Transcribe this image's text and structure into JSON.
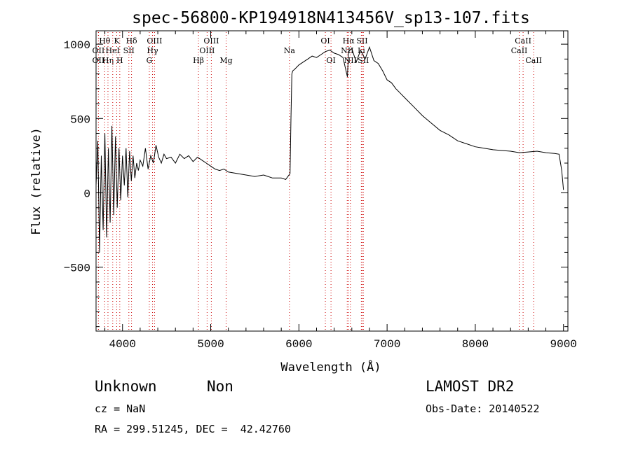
{
  "chart_data": {
    "type": "line",
    "title": "spec-56800-KP194918N413456V_sp13-107.fits",
    "xlabel": "Wavelength (Å)",
    "ylabel": "Flux (relative)",
    "xlim": [
      3700,
      9050
    ],
    "ylim": [
      -930,
      1090
    ],
    "xticks": [
      4000,
      5000,
      6000,
      7000,
      8000,
      9000
    ],
    "yticks": [
      -500,
      0,
      500,
      1000
    ],
    "grid": false,
    "series": [
      {
        "values_note_free": true,
        "x": [
          3700,
          3720,
          3740,
          3760,
          3780,
          3800,
          3820,
          3840,
          3860,
          3880,
          3900,
          3920,
          3940,
          3960,
          3980,
          4000,
          4020,
          4040,
          4060,
          4080,
          4100,
          4120,
          4140,
          4160,
          4180,
          4200,
          4230,
          4260,
          4290,
          4320,
          4350,
          4380,
          4410,
          4440,
          4470,
          4500,
          4550,
          4600,
          4650,
          4700,
          4750,
          4800,
          4850,
          4900,
          4950,
          5000,
          5050,
          5100,
          5150,
          5200,
          5300,
          5400,
          5500,
          5600,
          5700,
          5800,
          5850,
          5900,
          5910,
          5920,
          5930,
          5950,
          6000,
          6050,
          6100,
          6150,
          6200,
          6250,
          6300,
          6350,
          6400,
          6450,
          6500,
          6550,
          6563,
          6580,
          6600,
          6650,
          6700,
          6750,
          6800,
          6850,
          6900,
          6950,
          7000,
          7050,
          7100,
          7150,
          7200,
          7300,
          7400,
          7500,
          7600,
          7700,
          7800,
          7900,
          8000,
          8100,
          8200,
          8300,
          8400,
          8500,
          8600,
          8700,
          8800,
          8900,
          8950,
          8980,
          9000
        ],
        "y": [
          50,
          350,
          -400,
          250,
          -250,
          400,
          -300,
          300,
          -200,
          450,
          -150,
          380,
          -100,
          300,
          -50,
          250,
          50,
          300,
          -30,
          280,
          80,
          250,
          100,
          200,
          150,
          220,
          180,
          300,
          160,
          250,
          200,
          320,
          240,
          200,
          260,
          230,
          240,
          200,
          260,
          230,
          250,
          210,
          240,
          220,
          200,
          180,
          160,
          150,
          160,
          140,
          130,
          120,
          110,
          120,
          100,
          100,
          90,
          130,
          500,
          800,
          820,
          830,
          860,
          880,
          900,
          920,
          910,
          930,
          950,
          960,
          940,
          930,
          910,
          780,
          950,
          960,
          970,
          880,
          960,
          900,
          980,
          890,
          870,
          820,
          760,
          740,
          700,
          670,
          640,
          580,
          520,
          470,
          420,
          390,
          350,
          330,
          310,
          300,
          290,
          285,
          280,
          270,
          275,
          280,
          270,
          265,
          260,
          150,
          20
        ]
      }
    ],
    "line_labels": [
      {
        "text": "OII",
        "x": 3727,
        "row": 2
      },
      {
        "text": "Hθ",
        "x": 3798,
        "row": 0
      },
      {
        "text": "OII",
        "x": 3727,
        "row": 1
      },
      {
        "text": "K",
        "x": 3934,
        "row": 0
      },
      {
        "text": "Hη",
        "x": 3835,
        "row": 2
      },
      {
        "text": "HeI",
        "x": 3889,
        "row": 1
      },
      {
        "text": "H",
        "x": 3969,
        "row": 2
      },
      {
        "text": "SII",
        "x": 4072,
        "row": 1
      },
      {
        "text": "Hδ",
        "x": 4102,
        "row": 0
      },
      {
        "text": "OIII",
        "x": 4363,
        "row": 0
      },
      {
        "text": "Hγ",
        "x": 4340,
        "row": 1
      },
      {
        "text": "G",
        "x": 4304,
        "row": 2
      },
      {
        "text": "Hβ",
        "x": 4861,
        "row": 2
      },
      {
        "text": "OIII",
        "x": 4959,
        "row": 1
      },
      {
        "text": "OIII",
        "x": 5007,
        "row": 0
      },
      {
        "text": "Mg",
        "x": 5175,
        "row": 2
      },
      {
        "text": "Na",
        "x": 5893,
        "row": 1
      },
      {
        "text": "OI",
        "x": 6300,
        "row": 0
      },
      {
        "text": "OI",
        "x": 6364,
        "row": 2
      },
      {
        "text": "Hα",
        "x": 6563,
        "row": 0
      },
      {
        "text": "NII",
        "x": 6548,
        "row": 1
      },
      {
        "text": "NII",
        "x": 6584,
        "row": 2
      },
      {
        "text": "SII",
        "x": 6717,
        "row": 0
      },
      {
        "text": "Li",
        "x": 6708,
        "row": 1
      },
      {
        "text": "SII",
        "x": 6731,
        "row": 2
      },
      {
        "text": "CaII",
        "x": 8542,
        "row": 0
      },
      {
        "text": "CaII",
        "x": 8498,
        "row": 1
      },
      {
        "text": "CaII",
        "x": 8662,
        "row": 2
      }
    ],
    "line_color": "#cc0000"
  },
  "footer": {
    "class_label": "Unknown",
    "subclass_label": "Non",
    "cz": "cz = NaN",
    "coords": "RA = 299.51245, DEC =  42.42760",
    "survey": "LAMOST DR2",
    "obs_date": "Obs-Date: 20140522"
  }
}
